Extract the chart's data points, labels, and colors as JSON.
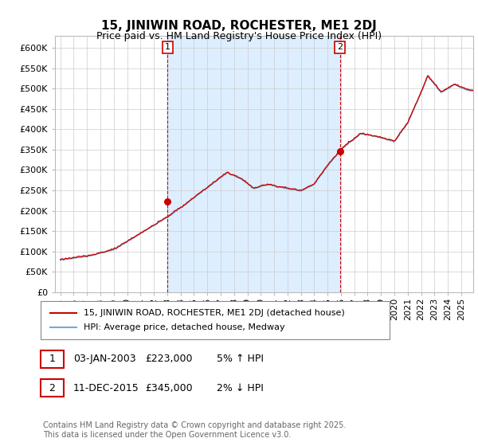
{
  "title": "15, JINIWIN ROAD, ROCHESTER, ME1 2DJ",
  "subtitle": "Price paid vs. HM Land Registry's House Price Index (HPI)",
  "legend_line1": "15, JINIWIN ROAD, ROCHESTER, ME1 2DJ (detached house)",
  "legend_line2": "HPI: Average price, detached house, Medway",
  "annotation1_date": "03-JAN-2003",
  "annotation1_price": "£223,000",
  "annotation1_hpi": "5% ↑ HPI",
  "annotation2_date": "11-DEC-2015",
  "annotation2_price": "£345,000",
  "annotation2_hpi": "2% ↓ HPI",
  "footer": "Contains HM Land Registry data © Crown copyright and database right 2025.\nThis data is licensed under the Open Government Licence v3.0.",
  "hpi_color": "#6baed6",
  "price_color": "#cc0000",
  "vline_color": "#cc0000",
  "shade_color": "#ddeeff",
  "annotation_box_color": "#cc0000",
  "ylim": [
    0,
    630000
  ],
  "yticks": [
    0,
    50000,
    100000,
    150000,
    200000,
    250000,
    300000,
    350000,
    400000,
    450000,
    500000,
    550000,
    600000
  ],
  "annotation1_year": 2003.03,
  "annotation2_year": 2015.92,
  "price_sale1_value": 223000,
  "price_sale2_value": 345000
}
